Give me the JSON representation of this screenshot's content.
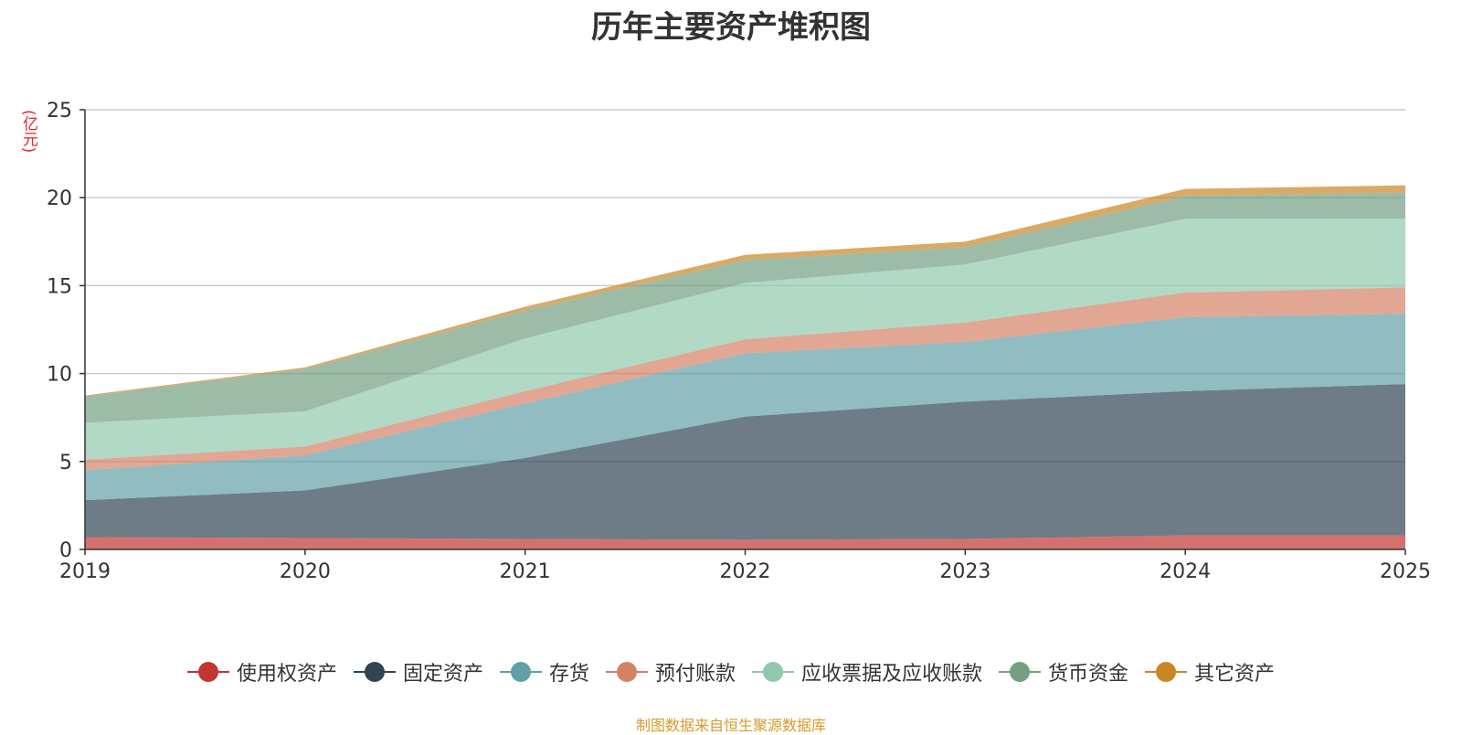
{
  "chart_data": {
    "type": "area",
    "stacked": true,
    "title": "历年主要资产堆积图",
    "unit_label": "(亿元)",
    "x": [
      "2019",
      "2020",
      "2021",
      "2022",
      "2023",
      "2024",
      "2025"
    ],
    "ylim": [
      0,
      25
    ],
    "yticks": [
      0,
      5,
      10,
      15,
      20,
      25
    ],
    "series": [
      {
        "name": "使用权资产",
        "color": "#c23531",
        "values": [
          0.7,
          0.65,
          0.6,
          0.55,
          0.6,
          0.8,
          0.8
        ]
      },
      {
        "name": "固定资产",
        "color": "#2f4554",
        "values": [
          2.1,
          2.7,
          4.6,
          7.0,
          7.8,
          8.2,
          8.6
        ]
      },
      {
        "name": "存货",
        "color": "#61a0a8",
        "values": [
          1.7,
          2.0,
          3.1,
          3.6,
          3.4,
          4.2,
          4.0
        ]
      },
      {
        "name": "预付账款",
        "color": "#d48265",
        "values": [
          0.6,
          0.5,
          0.7,
          0.8,
          1.1,
          1.4,
          1.5
        ]
      },
      {
        "name": "应收票据及应收账款",
        "color": "#91c7ae",
        "values": [
          2.1,
          2.0,
          3.0,
          3.2,
          3.3,
          4.2,
          3.9
        ]
      },
      {
        "name": "货币资金",
        "color": "#749f83",
        "values": [
          1.5,
          2.4,
          1.6,
          1.3,
          1.0,
          1.3,
          1.5
        ]
      },
      {
        "name": "其它资产",
        "color": "#ca8622",
        "values": [
          0.05,
          0.1,
          0.2,
          0.3,
          0.3,
          0.4,
          0.4
        ]
      }
    ]
  },
  "source_note": "制图数据来自恒生聚源数据库"
}
